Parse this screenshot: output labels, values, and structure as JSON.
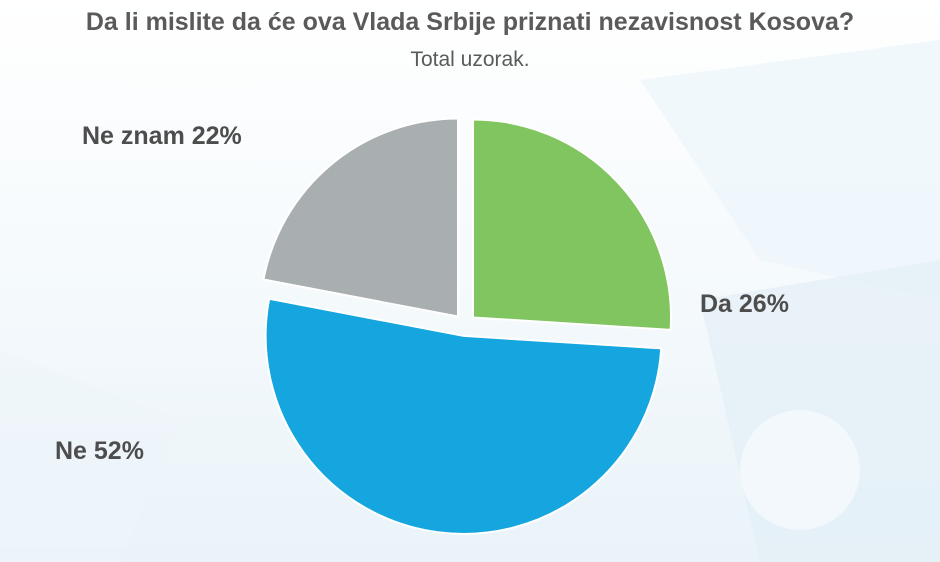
{
  "chart_data": {
    "type": "pie",
    "title": "Da li mislite da će ova Vlada Srbije priznati nezavisnost Kosova?",
    "subtitle": "Total uzorak.",
    "slices": [
      {
        "label": "Da 26%",
        "value": 26,
        "color": "#80c55f"
      },
      {
        "label": "Ne 52%",
        "value": 52,
        "color": "#15a6df"
      },
      {
        "label": "Ne znam 22%",
        "value": 22,
        "color": "#a9aeb0"
      }
    ]
  }
}
